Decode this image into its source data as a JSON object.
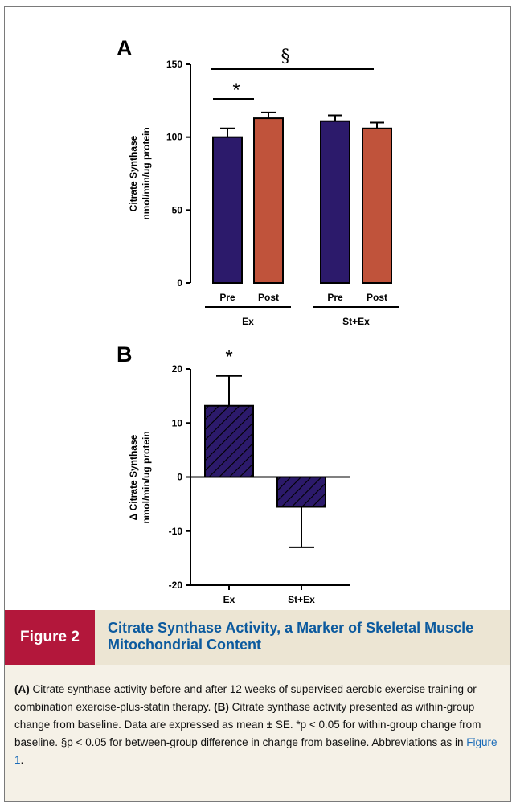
{
  "colors": {
    "pre": "#2c1a6b",
    "post": "#c0533b",
    "delta_fill": "#2c1a6b",
    "figure_tag": "#b3173b",
    "caption_title": "#0c5a9e",
    "link": "#1a6bb8"
  },
  "chart_data": [
    {
      "type": "bar",
      "panel_label": "A",
      "ylabel": [
        "Citrate Synthase",
        "nmol/min/ug protein"
      ],
      "ylim": [
        0,
        150
      ],
      "yticks": [
        0,
        50,
        100,
        150
      ],
      "groups": [
        {
          "label": "Ex",
          "bar_labels": [
            "Pre",
            "Post"
          ],
          "values": [
            100,
            113
          ],
          "errors": [
            6,
            4
          ]
        },
        {
          "label": "St+Ex",
          "bar_labels": [
            "Pre",
            "Post"
          ],
          "values": [
            111,
            106
          ],
          "errors": [
            4,
            4
          ]
        }
      ],
      "annotations": {
        "within_group": "*",
        "between_group": "§"
      }
    },
    {
      "type": "bar",
      "panel_label": "B",
      "ylabel": [
        "Δ Citrate  Synthase",
        "nmol/min/ug protein"
      ],
      "ylim": [
        -20,
        20
      ],
      "yticks": [
        -20,
        -10,
        0,
        10,
        20
      ],
      "categories": [
        "Ex",
        "St+Ex"
      ],
      "values": [
        13.2,
        -5.5
      ],
      "errors": [
        5.5,
        7.5
      ],
      "pattern": "hatched",
      "annotations": {
        "significance": "*"
      }
    }
  ],
  "caption": {
    "figure_tag": "Figure 2",
    "title": "Citrate Synthase Activity, a Marker of Skeletal Muscle Mitochondrial Content",
    "panel_a_tag": "(A)",
    "panel_a_text": " Citrate synthase activity before and after 12 weeks of supervised aerobic exercise training or combination exercise-plus-statin therapy. ",
    "panel_b_tag": "(B)",
    "panel_b_text": " Citrate synthase activity presented as within-group change from baseline. Data are expressed as mean ± SE. ",
    "stat_text": "*p < 0.05 for within-group change from baseline. §p < 0.05 for between-group difference in change from baseline. Abbreviations as in ",
    "link_text": "Figure 1",
    "end": "."
  }
}
